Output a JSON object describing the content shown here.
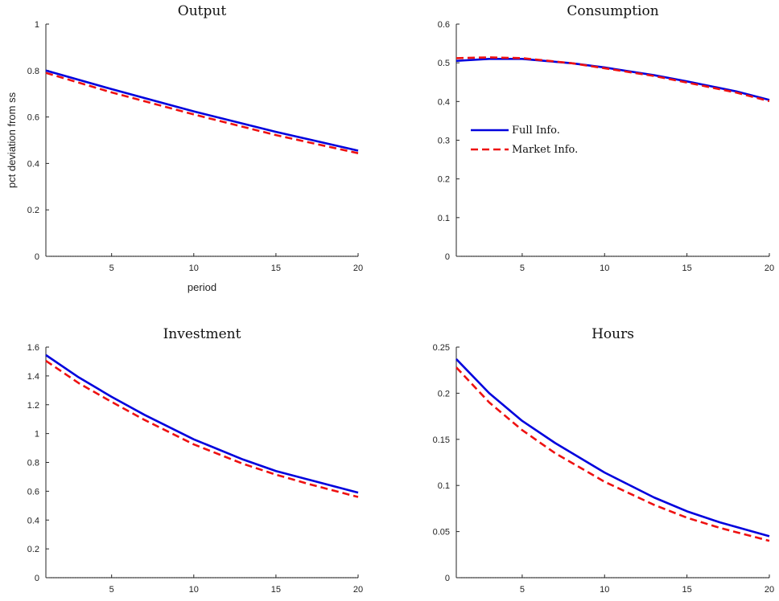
{
  "chart_data": [
    {
      "type": "line",
      "title": "Output",
      "xlabel": "period",
      "ylabel": "pct deviation from ss",
      "xlim": [
        1,
        20
      ],
      "ylim": [
        0,
        1
      ],
      "xticks": [
        5,
        10,
        15,
        20
      ],
      "yticks": [
        0,
        0.2,
        0.4,
        0.6,
        0.8,
        1
      ],
      "ytick_labels": [
        "0",
        "0.2",
        "0.4",
        "0.6",
        "0.8",
        "1"
      ],
      "zero_line": true,
      "legend": null,
      "x": [
        1,
        5,
        10,
        15,
        20
      ],
      "series": [
        {
          "name": "Full Info.",
          "color": "#0000dd",
          "style": "solid",
          "values": [
            0.8,
            0.72,
            0.624,
            0.536,
            0.455
          ]
        },
        {
          "name": "Market Info.",
          "color": "#ee1111",
          "style": "dashed",
          "values": [
            0.79,
            0.706,
            0.611,
            0.522,
            0.444
          ]
        }
      ]
    },
    {
      "type": "line",
      "title": "Consumption",
      "xlabel": "",
      "ylabel": "",
      "xlim": [
        1,
        20
      ],
      "ylim": [
        0,
        0.6
      ],
      "xticks": [
        5,
        10,
        15,
        20
      ],
      "yticks": [
        0,
        0.1,
        0.2,
        0.3,
        0.4,
        0.5,
        0.6
      ],
      "ytick_labels": [
        "0",
        "0.1",
        "0.2",
        "0.3",
        "0.4",
        "0.5",
        "0.6"
      ],
      "zero_line": true,
      "legend": "center-left",
      "x": [
        1,
        3,
        5,
        8,
        10,
        13,
        15,
        18,
        20
      ],
      "series": [
        {
          "name": "Full Info.",
          "color": "#0000dd",
          "style": "solid",
          "values": [
            0.505,
            0.51,
            0.51,
            0.499,
            0.488,
            0.468,
            0.452,
            0.426,
            0.404
          ]
        },
        {
          "name": "Market Info.",
          "color": "#ee1111",
          "style": "dashed",
          "values": [
            0.512,
            0.514,
            0.512,
            0.499,
            0.486,
            0.466,
            0.449,
            0.423,
            0.401
          ]
        }
      ]
    },
    {
      "type": "line",
      "title": "Investment",
      "xlabel": "",
      "ylabel": "",
      "xlim": [
        1,
        20
      ],
      "ylim": [
        0,
        1.6
      ],
      "xticks": [
        5,
        10,
        15,
        20
      ],
      "yticks": [
        0,
        0.2,
        0.4,
        0.6,
        0.8,
        1,
        1.2,
        1.4,
        1.6
      ],
      "ytick_labels": [
        "0",
        "0.2",
        "0.4",
        "0.6",
        "0.8",
        "1",
        "1.2",
        "1.4",
        "1.6"
      ],
      "zero_line": true,
      "legend": null,
      "x": [
        1,
        3,
        5,
        7,
        10,
        13,
        15,
        17,
        20
      ],
      "series": [
        {
          "name": "Full Info.",
          "color": "#0000dd",
          "style": "solid",
          "values": [
            1.545,
            1.39,
            1.255,
            1.13,
            0.96,
            0.82,
            0.74,
            0.68,
            0.59
          ]
        },
        {
          "name": "Market Info.",
          "color": "#ee1111",
          "style": "dashed",
          "values": [
            1.505,
            1.35,
            1.22,
            1.095,
            0.925,
            0.79,
            0.715,
            0.65,
            0.56
          ]
        }
      ]
    },
    {
      "type": "line",
      "title": "Hours",
      "xlabel": "",
      "ylabel": "",
      "xlim": [
        1,
        20
      ],
      "ylim": [
        0,
        0.25
      ],
      "xticks": [
        5,
        10,
        15,
        20
      ],
      "yticks": [
        0,
        0.05,
        0.1,
        0.15,
        0.2,
        0.25
      ],
      "ytick_labels": [
        "0",
        "0.05",
        "0.1",
        "0.15",
        "0.2",
        "0.25"
      ],
      "zero_line": true,
      "legend": null,
      "x": [
        1,
        3,
        5,
        7,
        10,
        13,
        15,
        17,
        20
      ],
      "series": [
        {
          "name": "Full Info.",
          "color": "#0000dd",
          "style": "solid",
          "values": [
            0.237,
            0.2,
            0.17,
            0.146,
            0.114,
            0.087,
            0.072,
            0.06,
            0.045
          ]
        },
        {
          "name": "Market Info.",
          "color": "#ee1111",
          "style": "dashed",
          "values": [
            0.228,
            0.19,
            0.16,
            0.135,
            0.104,
            0.079,
            0.065,
            0.054,
            0.04
          ]
        }
      ]
    }
  ]
}
